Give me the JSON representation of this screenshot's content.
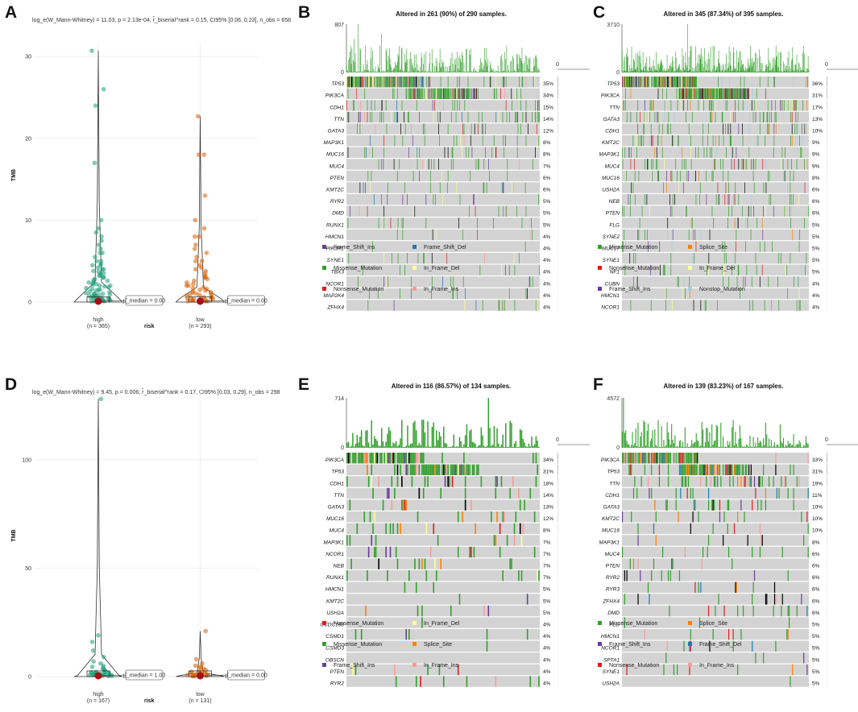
{
  "colors": {
    "Missense_Mutation": "#33a02c",
    "Nonsense_Mutation": "#e31a1c",
    "Frame_Shift_Ins": "#6a3d9a",
    "Frame_Shift_Del": "#1f78b4",
    "Splice_Site": "#ff7f00",
    "In_Frame_Del": "#ffff99",
    "In_Frame_Ins": "#fb9a99",
    "Nonstop_Mutation": "#a6cee3",
    "Multi_Hit": "#000000",
    "high": "#1b9e77",
    "low": "#d95f02",
    "grey": "#d3d3d3"
  },
  "panels": {
    "A": {
      "label": "A",
      "subtitle": "log_e(W_Mann-Whitney) = 11.03, p = 2.13e-04, r̂_biserial^rank = 0.15, CI95% [0.06, 0.23], n_obs = 658"
    },
    "D": {
      "label": "D",
      "subtitle": "log_e(W_Mann-Whitney) = 9.45, p = 0.006, r̂_biserial^rank = 0.17, CI95% [0.03, 0.29], n_obs = 298"
    },
    "B": {
      "label": "B"
    },
    "C": {
      "label": "C"
    },
    "E": {
      "label": "E"
    },
    "F": {
      "label": "F"
    }
  },
  "chart_data": [
    {
      "panel": "A",
      "type": "scatter",
      "title": "",
      "subtitle": "log_e(W_Mann-Whitney) = 11.03, p = 2.13e-04, r̂_biserial^rank = 0.15, CI95% [0.06, 0.23], n_obs = 658",
      "xlabel": "risk",
      "ylabel": "TMB",
      "ylim": [
        0,
        31
      ],
      "yticks": [
        0,
        10,
        20,
        30
      ],
      "groups": [
        {
          "name": "high",
          "n": "(n = 365)",
          "median_label": "μ̂_median = 0.00",
          "color": "#1b9e77",
          "points": [
            30.7,
            26,
            24,
            17,
            10,
            9,
            8.5,
            8,
            7.5,
            7,
            6.5,
            6,
            6,
            5.5,
            5,
            5,
            4.7,
            4.5,
            4.5,
            4.2,
            4,
            4,
            3.8,
            3.7,
            3.5,
            3.5,
            3.3,
            3.2,
            3,
            3,
            2.8,
            2.7,
            2.6,
            2.5,
            2.4,
            2.3,
            2.2,
            2.1,
            2,
            2,
            1.9,
            1.8,
            1.7,
            1.6,
            1.5,
            1.5,
            1.4,
            1.3,
            1.2,
            1.1,
            1,
            1,
            1,
            0.9,
            0.9,
            0.8,
            0.8,
            0.7,
            0.7,
            0.6,
            0.6,
            0.5,
            0.5,
            0.5,
            0.4,
            0.4,
            0.4,
            0.3,
            0.3,
            0.3,
            0.2,
            0.2,
            0.2,
            0.2,
            0.1,
            0.1,
            0.1,
            0.1
          ]
        },
        {
          "name": "low",
          "n": "(n = 293)",
          "median_label": "μ̂_median = 0.00",
          "color": "#d95f02",
          "points": [
            22.7,
            18,
            18,
            13,
            10,
            9,
            8,
            8,
            7,
            6.5,
            6,
            5.5,
            5,
            5,
            4.5,
            4.2,
            4,
            3.8,
            3.5,
            3.2,
            3,
            3,
            2.8,
            2.6,
            2.4,
            2.2,
            2,
            2,
            1.8,
            1.7,
            1.6,
            1.5,
            1.4,
            1.3,
            1.2,
            1.1,
            1,
            1,
            0.9,
            0.8,
            0.8,
            0.7,
            0.6,
            0.6,
            0.5,
            0.5,
            0.4,
            0.4,
            0.3,
            0.3,
            0.3,
            0.2,
            0.2,
            0.2,
            0.1,
            0.1,
            0.1
          ]
        }
      ]
    },
    {
      "panel": "D",
      "type": "scatter",
      "title": "",
      "subtitle": "log_e(W_Mann-Whitney) = 9.45, p = 0.006, r̂_biserial^rank = 0.17, CI95% [0.03, 0.29], n_obs = 298",
      "xlabel": "risk",
      "ylabel": "TMB",
      "ylim": [
        0,
        130
      ],
      "yticks": [
        0,
        50,
        100
      ],
      "groups": [
        {
          "name": "high",
          "n": "(n = 167)",
          "median_label": "μ̂_median = 1.00",
          "color": "#1b9e77",
          "points": [
            128,
            19,
            16,
            12,
            9,
            7,
            6,
            5,
            4.5,
            4,
            3.5,
            3,
            3,
            2.5,
            2.2,
            2,
            2,
            1.8,
            1.6,
            1.5,
            1.4,
            1.3,
            1.2,
            1.1,
            1,
            1,
            1,
            0.9,
            0.8,
            0.7,
            0.6,
            0.5,
            0.4,
            0.3,
            0.2
          ]
        },
        {
          "name": "low",
          "n": "(n = 131)",
          "median_label": "μ̂_median = 0.00",
          "color": "#d95f02",
          "points": [
            21,
            8,
            6,
            5,
            4.5,
            4,
            3.5,
            3,
            2.5,
            2.2,
            2,
            1.8,
            1.6,
            1.4,
            1.2,
            1,
            1,
            0.9,
            0.8,
            0.7,
            0.6,
            0.5,
            0.4,
            0.3,
            0.2,
            0.1
          ]
        }
      ]
    },
    {
      "panel": "B",
      "type": "heatmap",
      "title": "Altered in 261 (90%) of 290 samples.",
      "top_max": "807",
      "right_max": "101",
      "genes": [
        "TP53",
        "PIK3CA",
        "CDH1",
        "TTN",
        "GATA3",
        "MAP3K1",
        "MUC16",
        "MUC4",
        "PTEN",
        "KMT2C",
        "RYR2",
        "DMD",
        "RUNX1",
        "HMCN1",
        "PIK3R1",
        "SYNE1",
        "TBX3",
        "NCOR1",
        "MAP2K4",
        "ZFHX4"
      ],
      "pcts": [
        "35%",
        "34%",
        "15%",
        "14%",
        "12%",
        "8%",
        "8%",
        "7%",
        "6%",
        "6%",
        "5%",
        "5%",
        "5%",
        "4%",
        "4%",
        "4%",
        "4%",
        "4%",
        "4%",
        "4%"
      ],
      "legend": [
        "Frame_Shift_Ins",
        "Frame_Shift_Del",
        "Missense_Mutation",
        "In_Frame_Del",
        "Nonsense_Mutation",
        "In_Frame_Ins"
      ]
    },
    {
      "panel": "C",
      "type": "heatmap",
      "title": "Altered in 345 (87.34%) of 395 samples.",
      "top_max": "3710",
      "right_max": "143",
      "genes": [
        "TP53",
        "PIK3CA",
        "TTN",
        "GATA3",
        "CDH1",
        "KMT2C",
        "MAP3K1",
        "MUC4",
        "MUC16",
        "USH2A",
        "NEB",
        "PTEN",
        "FLG",
        "SYNE2",
        "MUC17",
        "SYNE1",
        "NF1",
        "CUBN",
        "HMCN1",
        "NCOR1"
      ],
      "pcts": [
        "36%",
        "31%",
        "17%",
        "13%",
        "10%",
        "9%",
        "9%",
        "9%",
        "8%",
        "6%",
        "6%",
        "6%",
        "5%",
        "5%",
        "5%",
        "5%",
        "5%",
        "4%",
        "4%",
        "4%"
      ],
      "legend": [
        "Missense_Mutation",
        "Splice_Site",
        "Nonsense_Mutation",
        "In_Frame_Del",
        "Frame_Shift_Ins",
        "Nonstop_Mutation"
      ]
    },
    {
      "panel": "E",
      "type": "heatmap",
      "title": "Altered in 116 (86.57%) of 134 samples.",
      "top_max": "714",
      "right_max": "46",
      "genes": [
        "PIK3CA",
        "TP53",
        "CDH1",
        "TTN",
        "GATA3",
        "MUC16",
        "MUC4",
        "MAP3K1",
        "NCOR1",
        "NEB",
        "RUNX1",
        "HMCN1",
        "KMT2C",
        "USH2A",
        "CCDC168",
        "CSMD1",
        "CSMD3",
        "OBSCN",
        "PTEN",
        "RYR2"
      ],
      "pcts": [
        "34%",
        "31%",
        "18%",
        "14%",
        "13%",
        "12%",
        "8%",
        "7%",
        "7%",
        "7%",
        "7%",
        "5%",
        "5%",
        "5%",
        "4%",
        "4%",
        "4%",
        "4%",
        "4%",
        "4%"
      ],
      "legend": [
        "Nonsense_Mutation",
        "In_Frame_Del",
        "Missense_Mutation",
        "Splice_Site",
        "Frame_Shift_Ins",
        "In_Frame_Ins"
      ]
    },
    {
      "panel": "F",
      "type": "heatmap",
      "title": "Altered in 139 (83.23%) of 167 samples.",
      "top_max": "4572",
      "right_max": "55",
      "genes": [
        "PIK3CA",
        "TP53",
        "TTN",
        "CDH1",
        "GATA3",
        "KMT2C",
        "MUC16",
        "MAP3K1",
        "MUC4",
        "PTEN",
        "RYR2",
        "RYR3",
        "ZFHX4",
        "DMD",
        "FLG",
        "HMCN1",
        "NCOR1",
        "SPTA1",
        "SYNE1",
        "USH2A"
      ],
      "pcts": [
        "33%",
        "31%",
        "19%",
        "11%",
        "10%",
        "10%",
        "10%",
        "8%",
        "6%",
        "6%",
        "6%",
        "6%",
        "6%",
        "6%",
        "5%",
        "5%",
        "5%",
        "5%",
        "5%",
        "5%"
      ],
      "legend": [
        "Missense_Mutation",
        "Splice_Site",
        "Frame_Shift_Ins",
        "Frame_Shift_Del",
        "Nonsense_Mutation",
        "In_Frame_Ins"
      ]
    }
  ]
}
